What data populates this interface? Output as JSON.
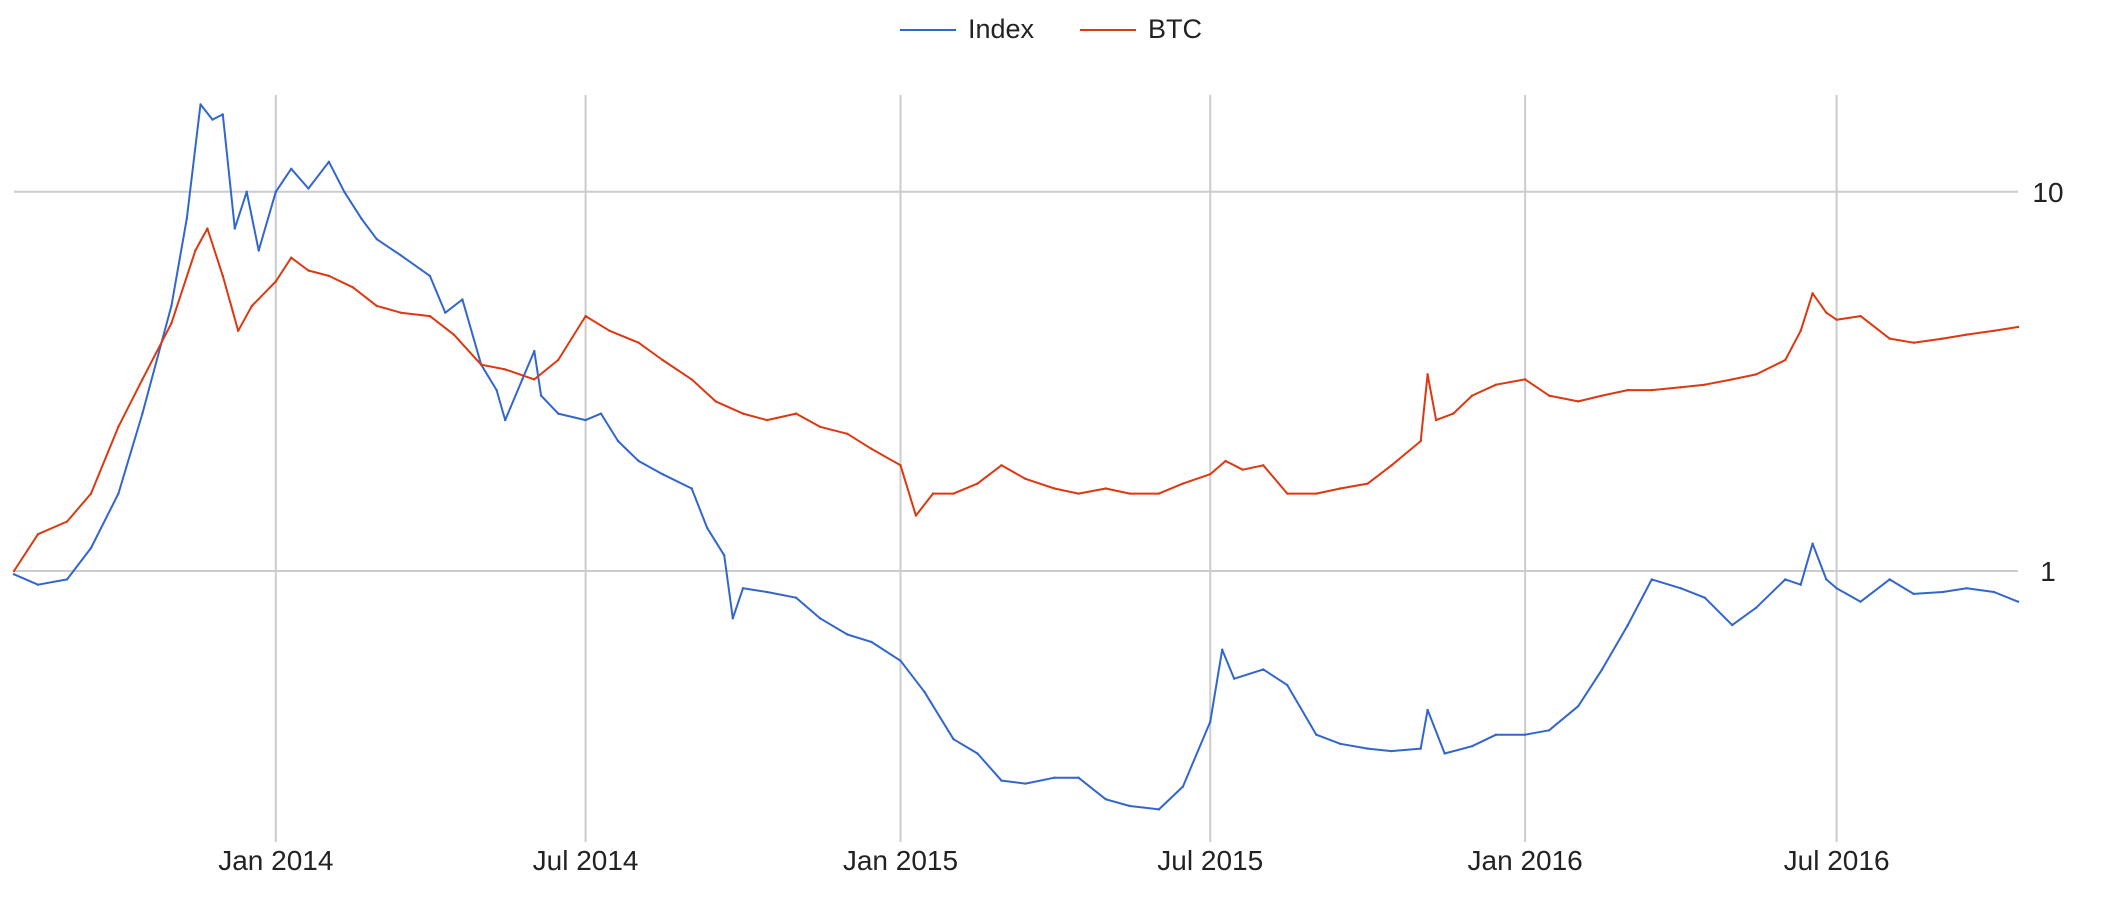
{
  "chart_data": {
    "type": "line",
    "title": "",
    "xlabel": "",
    "ylabel": "",
    "y_scale": "log",
    "ylim": [
      0.2,
      18
    ],
    "xlim": [
      "2013-08-01",
      "2016-10-15"
    ],
    "grid": true,
    "legend_position": "top-center",
    "x_ticks": [
      {
        "date": "2014-01-01",
        "label": "Jan 2014"
      },
      {
        "date": "2014-07-01",
        "label": "Jul 2014"
      },
      {
        "date": "2015-01-01",
        "label": "Jan 2015"
      },
      {
        "date": "2015-07-01",
        "label": "Jul 2015"
      },
      {
        "date": "2016-01-01",
        "label": "Jan 2016"
      },
      {
        "date": "2016-07-01",
        "label": "Jul 2016"
      }
    ],
    "y_ticks": [
      {
        "value": 1,
        "label": "1"
      },
      {
        "value": 10,
        "label": "10"
      }
    ],
    "series": [
      {
        "name": "Index",
        "color": "#3366cc",
        "points": [
          [
            "2013-08-01",
            0.98
          ],
          [
            "2013-08-15",
            0.92
          ],
          [
            "2013-09-01",
            0.95
          ],
          [
            "2013-09-15",
            1.15
          ],
          [
            "2013-10-01",
            1.6
          ],
          [
            "2013-10-15",
            2.6
          ],
          [
            "2013-11-01",
            5.0
          ],
          [
            "2013-11-10",
            8.5
          ],
          [
            "2013-11-18",
            17.0
          ],
          [
            "2013-11-25",
            15.5
          ],
          [
            "2013-12-01",
            16.0
          ],
          [
            "2013-12-08",
            8.0
          ],
          [
            "2013-12-15",
            10.0
          ],
          [
            "2013-12-22",
            7.0
          ],
          [
            "2014-01-01",
            10.0
          ],
          [
            "2014-01-10",
            11.5
          ],
          [
            "2014-01-20",
            10.2
          ],
          [
            "2014-02-01",
            12.0
          ],
          [
            "2014-02-10",
            10.0
          ],
          [
            "2014-02-20",
            8.5
          ],
          [
            "2014-03-01",
            7.5
          ],
          [
            "2014-03-15",
            6.8
          ],
          [
            "2014-04-01",
            6.0
          ],
          [
            "2014-04-10",
            4.8
          ],
          [
            "2014-04-20",
            5.2
          ],
          [
            "2014-05-01",
            3.5
          ],
          [
            "2014-05-10",
            3.0
          ],
          [
            "2014-05-15",
            2.5
          ],
          [
            "2014-05-25",
            3.2
          ],
          [
            "2014-06-01",
            3.8
          ],
          [
            "2014-06-05",
            2.9
          ],
          [
            "2014-06-15",
            2.6
          ],
          [
            "2014-07-01",
            2.5
          ],
          [
            "2014-07-10",
            2.6
          ],
          [
            "2014-07-20",
            2.2
          ],
          [
            "2014-08-01",
            1.95
          ],
          [
            "2014-08-15",
            1.8
          ],
          [
            "2014-09-01",
            1.65
          ],
          [
            "2014-09-10",
            1.3
          ],
          [
            "2014-09-20",
            1.1
          ],
          [
            "2014-09-25",
            0.75
          ],
          [
            "2014-10-01",
            0.9
          ],
          [
            "2014-10-15",
            0.88
          ],
          [
            "2014-11-01",
            0.85
          ],
          [
            "2014-11-15",
            0.75
          ],
          [
            "2014-12-01",
            0.68
          ],
          [
            "2014-12-15",
            0.65
          ],
          [
            "2015-01-01",
            0.58
          ],
          [
            "2015-01-15",
            0.48
          ],
          [
            "2015-02-01",
            0.36
          ],
          [
            "2015-02-15",
            0.33
          ],
          [
            "2015-03-01",
            0.28
          ],
          [
            "2015-03-15",
            0.275
          ],
          [
            "2015-04-01",
            0.285
          ],
          [
            "2015-04-15",
            0.285
          ],
          [
            "2015-05-01",
            0.25
          ],
          [
            "2015-05-15",
            0.24
          ],
          [
            "2015-06-01",
            0.235
          ],
          [
            "2015-06-15",
            0.27
          ],
          [
            "2015-07-01",
            0.4
          ],
          [
            "2015-07-08",
            0.62
          ],
          [
            "2015-07-15",
            0.52
          ],
          [
            "2015-08-01",
            0.55
          ],
          [
            "2015-08-15",
            0.5
          ],
          [
            "2015-09-01",
            0.37
          ],
          [
            "2015-09-15",
            0.35
          ],
          [
            "2015-10-01",
            0.34
          ],
          [
            "2015-10-15",
            0.335
          ],
          [
            "2015-11-01",
            0.34
          ],
          [
            "2015-11-05",
            0.43
          ],
          [
            "2015-11-15",
            0.33
          ],
          [
            "2015-12-01",
            0.345
          ],
          [
            "2015-12-15",
            0.37
          ],
          [
            "2016-01-01",
            0.37
          ],
          [
            "2016-01-15",
            0.38
          ],
          [
            "2016-02-01",
            0.44
          ],
          [
            "2016-02-15",
            0.55
          ],
          [
            "2016-03-01",
            0.72
          ],
          [
            "2016-03-15",
            0.95
          ],
          [
            "2016-04-01",
            0.9
          ],
          [
            "2016-04-15",
            0.85
          ],
          [
            "2016-05-01",
            0.72
          ],
          [
            "2016-05-15",
            0.8
          ],
          [
            "2016-06-01",
            0.95
          ],
          [
            "2016-06-10",
            0.92
          ],
          [
            "2016-06-17",
            1.18
          ],
          [
            "2016-06-25",
            0.95
          ],
          [
            "2016-07-01",
            0.9
          ],
          [
            "2016-07-15",
            0.83
          ],
          [
            "2016-08-01",
            0.95
          ],
          [
            "2016-08-15",
            0.87
          ],
          [
            "2016-09-01",
            0.88
          ],
          [
            "2016-09-15",
            0.9
          ],
          [
            "2016-10-01",
            0.88
          ],
          [
            "2016-10-15",
            0.83
          ]
        ]
      },
      {
        "name": "BTC",
        "color": "#dc3912",
        "points": [
          [
            "2013-08-01",
            1.0
          ],
          [
            "2013-08-15",
            1.25
          ],
          [
            "2013-09-01",
            1.35
          ],
          [
            "2013-09-15",
            1.6
          ],
          [
            "2013-10-01",
            2.4
          ],
          [
            "2013-10-15",
            3.2
          ],
          [
            "2013-11-01",
            4.5
          ],
          [
            "2013-11-15",
            7.0
          ],
          [
            "2013-11-22",
            8.0
          ],
          [
            "2013-12-01",
            6.0
          ],
          [
            "2013-12-10",
            4.3
          ],
          [
            "2013-12-18",
            5.0
          ],
          [
            "2014-01-01",
            5.8
          ],
          [
            "2014-01-10",
            6.7
          ],
          [
            "2014-01-20",
            6.2
          ],
          [
            "2014-02-01",
            6.0
          ],
          [
            "2014-02-15",
            5.6
          ],
          [
            "2014-03-01",
            5.0
          ],
          [
            "2014-03-15",
            4.8
          ],
          [
            "2014-04-01",
            4.7
          ],
          [
            "2014-04-15",
            4.2
          ],
          [
            "2014-05-01",
            3.5
          ],
          [
            "2014-05-15",
            3.4
          ],
          [
            "2014-06-01",
            3.2
          ],
          [
            "2014-06-15",
            3.6
          ],
          [
            "2014-07-01",
            4.7
          ],
          [
            "2014-07-15",
            4.3
          ],
          [
            "2014-08-01",
            4.0
          ],
          [
            "2014-08-15",
            3.6
          ],
          [
            "2014-09-01",
            3.2
          ],
          [
            "2014-09-15",
            2.8
          ],
          [
            "2014-10-01",
            2.6
          ],
          [
            "2014-10-15",
            2.5
          ],
          [
            "2014-11-01",
            2.6
          ],
          [
            "2014-11-15",
            2.4
          ],
          [
            "2014-12-01",
            2.3
          ],
          [
            "2014-12-15",
            2.1
          ],
          [
            "2015-01-01",
            1.9
          ],
          [
            "2015-01-10",
            1.4
          ],
          [
            "2015-01-20",
            1.6
          ],
          [
            "2015-02-01",
            1.6
          ],
          [
            "2015-02-15",
            1.7
          ],
          [
            "2015-03-01",
            1.9
          ],
          [
            "2015-03-15",
            1.75
          ],
          [
            "2015-04-01",
            1.65
          ],
          [
            "2015-04-15",
            1.6
          ],
          [
            "2015-05-01",
            1.65
          ],
          [
            "2015-05-15",
            1.6
          ],
          [
            "2015-06-01",
            1.6
          ],
          [
            "2015-06-15",
            1.7
          ],
          [
            "2015-07-01",
            1.8
          ],
          [
            "2015-07-10",
            1.95
          ],
          [
            "2015-07-20",
            1.85
          ],
          [
            "2015-08-01",
            1.9
          ],
          [
            "2015-08-15",
            1.6
          ],
          [
            "2015-09-01",
            1.6
          ],
          [
            "2015-09-15",
            1.65
          ],
          [
            "2015-10-01",
            1.7
          ],
          [
            "2015-10-15",
            1.9
          ],
          [
            "2015-11-01",
            2.2
          ],
          [
            "2015-11-05",
            3.3
          ],
          [
            "2015-11-10",
            2.5
          ],
          [
            "2015-11-20",
            2.6
          ],
          [
            "2015-12-01",
            2.9
          ],
          [
            "2015-12-15",
            3.1
          ],
          [
            "2016-01-01",
            3.2
          ],
          [
            "2016-01-15",
            2.9
          ],
          [
            "2016-02-01",
            2.8
          ],
          [
            "2016-02-15",
            2.9
          ],
          [
            "2016-03-01",
            3.0
          ],
          [
            "2016-03-15",
            3.0
          ],
          [
            "2016-04-01",
            3.05
          ],
          [
            "2016-04-15",
            3.1
          ],
          [
            "2016-05-01",
            3.2
          ],
          [
            "2016-05-15",
            3.3
          ],
          [
            "2016-06-01",
            3.6
          ],
          [
            "2016-06-10",
            4.3
          ],
          [
            "2016-06-17",
            5.4
          ],
          [
            "2016-06-25",
            4.8
          ],
          [
            "2016-07-01",
            4.6
          ],
          [
            "2016-07-15",
            4.7
          ],
          [
            "2016-08-01",
            4.1
          ],
          [
            "2016-08-15",
            4.0
          ],
          [
            "2016-09-01",
            4.1
          ],
          [
            "2016-09-15",
            4.2
          ],
          [
            "2016-10-01",
            4.3
          ],
          [
            "2016-10-15",
            4.4
          ]
        ]
      }
    ]
  }
}
